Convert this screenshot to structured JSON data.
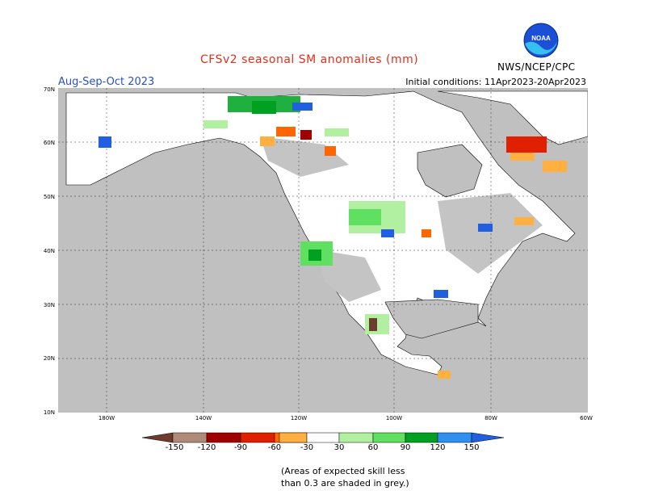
{
  "header": {
    "title": "CFSv2 seasonal SM anomalies (mm)",
    "period": "Aug-Sep-Oct 2023",
    "initial_conditions": "Initial conditions: 11Apr2023-20Apr2023",
    "agency": "NWS/NCEP/CPC",
    "logo_text": "NOAA"
  },
  "map": {
    "lat_labels": [
      "70N",
      "60N",
      "50N",
      "40N",
      "30N",
      "20N",
      "10N"
    ],
    "lon_labels": [
      "180W",
      "140W",
      "120W",
      "100W",
      "80W",
      "60W"
    ],
    "land_color": "#ffffff",
    "ocean_color": "#c0c0c0",
    "skill_grey": "#c4c4c4"
  },
  "colorbar": {
    "labels": [
      "-150",
      "-120",
      "-90",
      "-60",
      "-30",
      "30",
      "60",
      "90",
      "120",
      "150"
    ],
    "colors": [
      "#6e3b2c",
      "#b08a78",
      "#a00000",
      "#e02000",
      "#ff6600",
      "#ffb040",
      "#ffffff",
      "#b0f0a0",
      "#60e060",
      "#20b040",
      "#00a020",
      "#3090f0",
      "#2060e0"
    ]
  },
  "footnote": {
    "line1": "(Areas of expected skill less",
    "line2": "than 0.3 are shaded in grey.)"
  }
}
